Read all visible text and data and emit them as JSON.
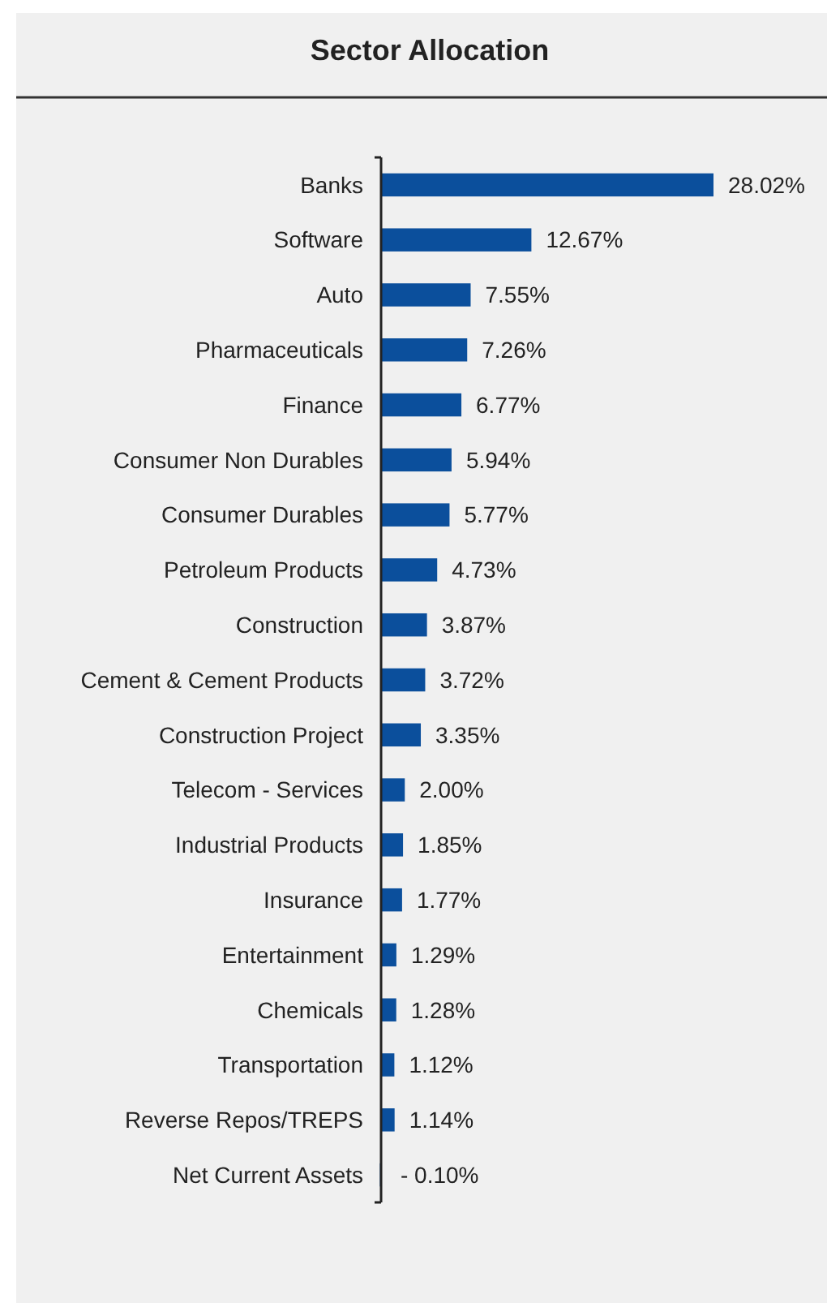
{
  "chart_data": {
    "type": "bar",
    "orientation": "horizontal",
    "title": "Sector Allocation",
    "categories": [
      "Banks",
      "Software",
      "Auto",
      "Pharmaceuticals",
      "Finance",
      "Consumer Non Durables",
      "Consumer Durables",
      "Petroleum Products",
      "Construction",
      "Cement & Cement Products",
      "Construction Project",
      "Telecom - Services",
      "Industrial Products",
      "Insurance",
      "Entertainment",
      "Chemicals",
      "Transportation",
      "Reverse Repos/TREPS",
      "Net Current Assets"
    ],
    "values": [
      28.02,
      12.67,
      7.55,
      7.26,
      6.77,
      5.94,
      5.77,
      4.73,
      3.87,
      3.72,
      3.35,
      2.0,
      1.85,
      1.77,
      1.29,
      1.28,
      1.12,
      1.14,
      -0.1
    ],
    "value_labels": [
      "28.02%",
      "12.67%",
      "7.55%",
      "7.26%",
      "6.77%",
      "5.94%",
      "5.77%",
      "4.73%",
      "3.87%",
      "3.72%",
      "3.35%",
      "2.00%",
      "1.85%",
      "1.77%",
      "1.29%",
      "1.28%",
      "1.12%",
      "1.14%",
      "- 0.10%"
    ],
    "color": "#0b4f9c"
  }
}
